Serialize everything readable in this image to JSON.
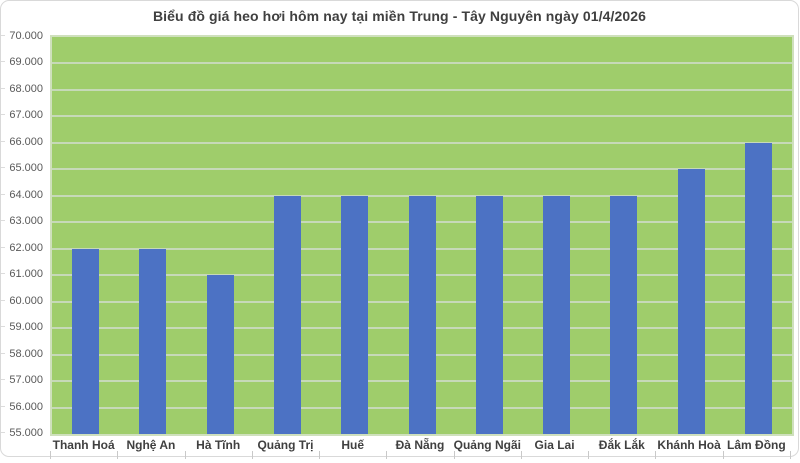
{
  "card": {
    "title": "Biểu đồ giá heo hơi hôm nay tại miền Trung - Tây Nguyên ngày 01/4/2026"
  },
  "chart_data": {
    "type": "bar",
    "title": "Biểu đồ giá heo hơi hôm nay tại miền Trung - Tây Nguyên ngày 01/4/2026",
    "categories": [
      "Thanh Hoá",
      "Nghệ An",
      "Hà Tĩnh",
      "Quảng Trị",
      "Huế",
      "Đà Nẵng",
      "Quảng Ngãi",
      "Gia Lai",
      "Đắk Lắk",
      "Khánh Hoà",
      "Lâm Đồng"
    ],
    "values": [
      62000,
      62000,
      61000,
      64000,
      64000,
      64000,
      64000,
      64000,
      64000,
      65000,
      66000
    ],
    "xlabel": "",
    "ylabel": "",
    "ylim": [
      55000,
      70000
    ],
    "ytick_step": 1000,
    "ytick_labels": [
      "70.000",
      "69.000",
      "68.000",
      "67.000",
      "66.000",
      "65.000",
      "64.000",
      "63.000",
      "62.000",
      "61.000",
      "60.000",
      "59.000",
      "58.000",
      "57.000",
      "56.000",
      "55.000"
    ],
    "grid": "horizontal",
    "legend": "none",
    "colors": {
      "bar": "#4C72C4",
      "plot_background": "#9FCD6B",
      "gridline": "#C6D9B8",
      "title_text": "#404040",
      "axis_text": "#595959",
      "card_border": "#d9d9d9"
    }
  }
}
